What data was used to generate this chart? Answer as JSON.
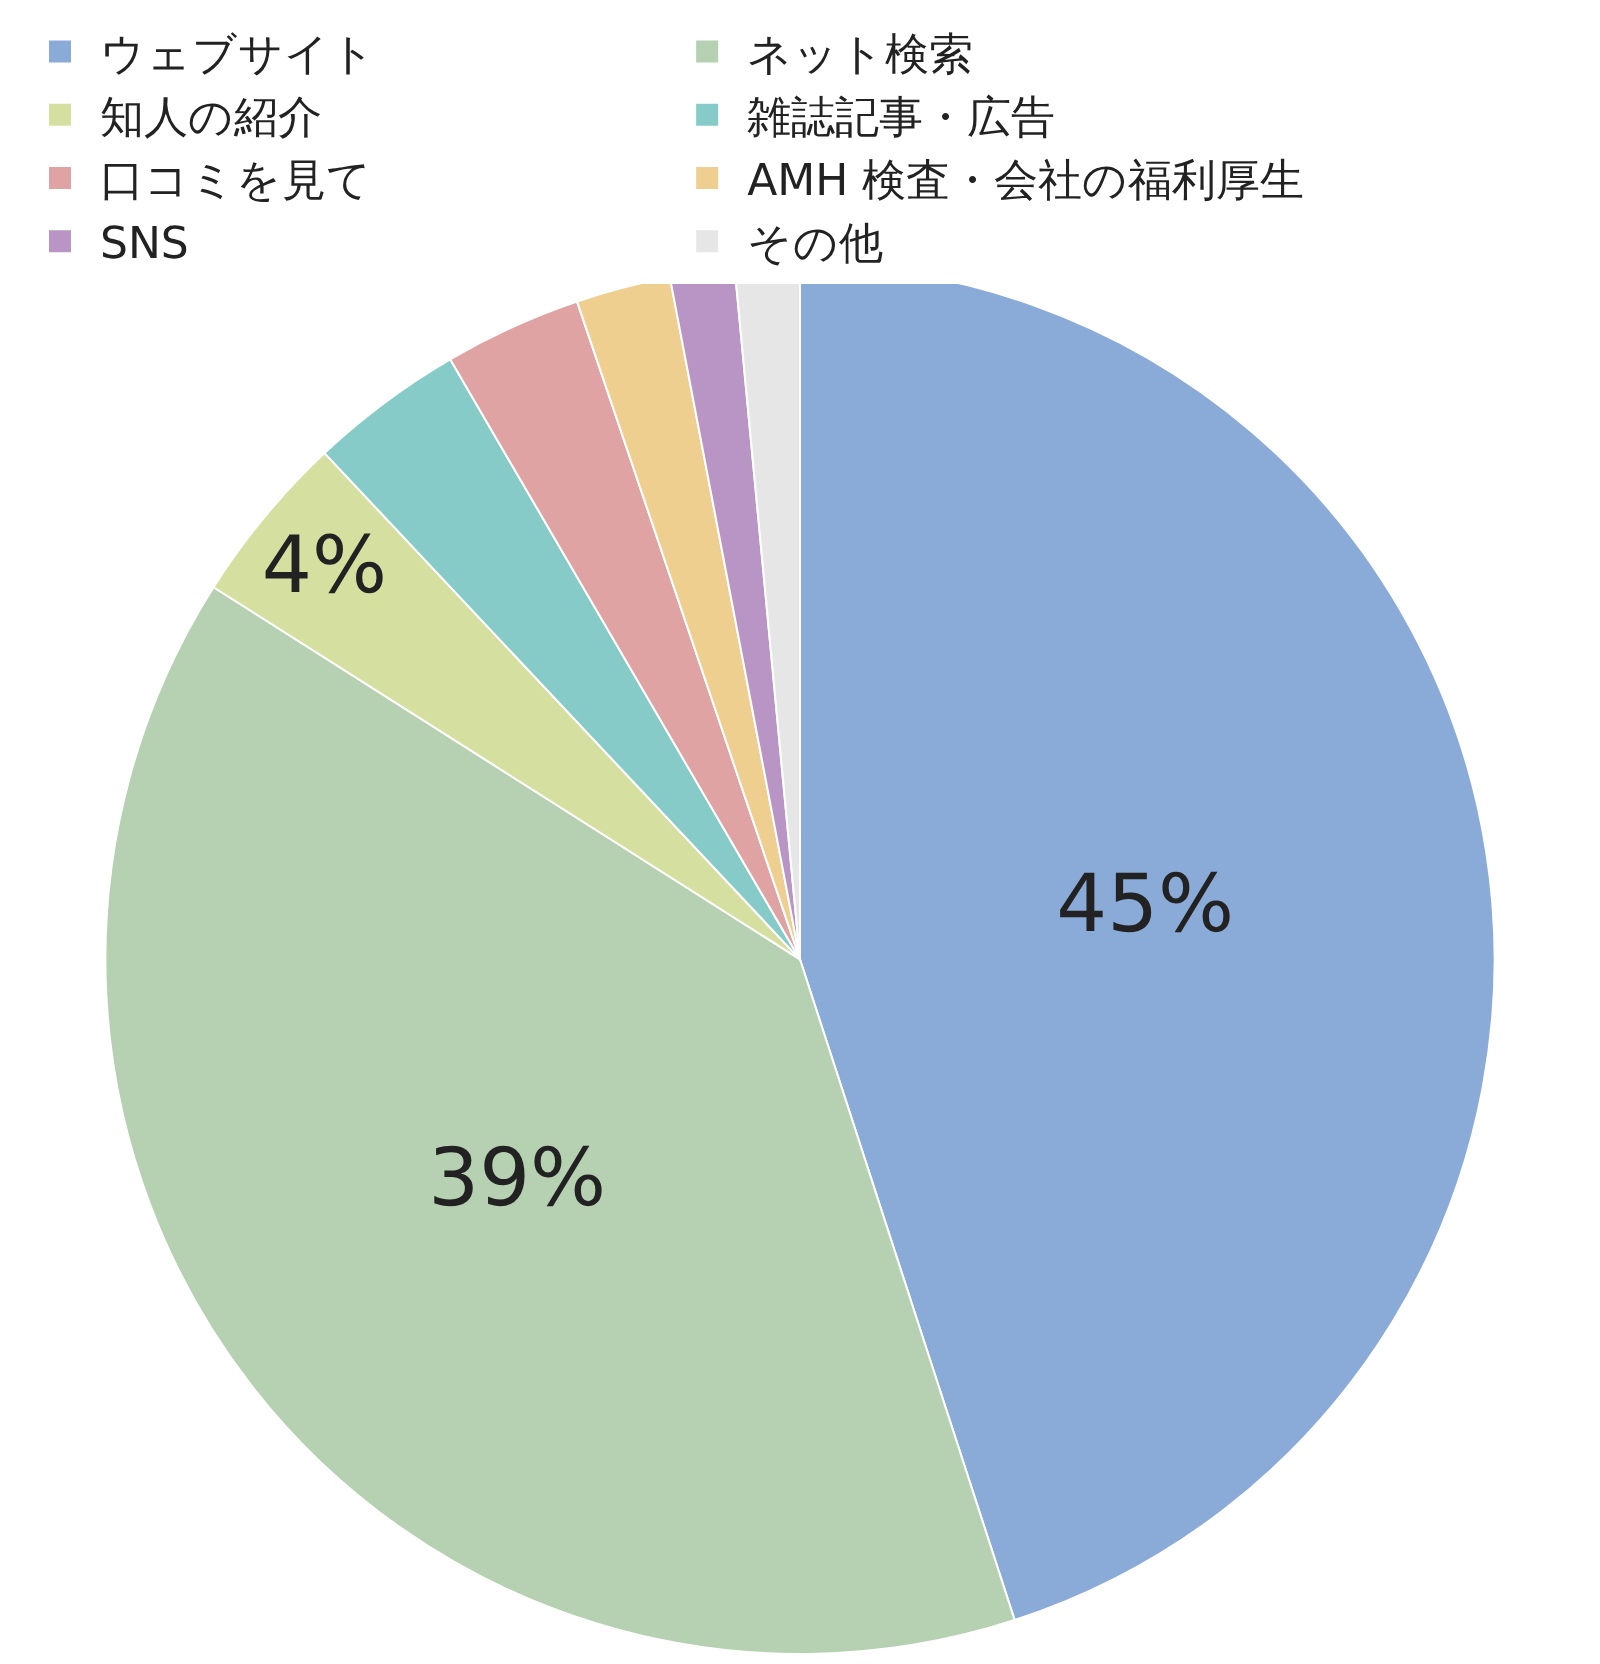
{
  "chart_data": {
    "type": "pie",
    "categories": [
      "ウェブサイト",
      "ネット検索",
      "知人の紹介",
      "雑誌記事・広告",
      "口コミを見て",
      "AMH 検査・会社の福利厚生",
      "SNS",
      "その他"
    ],
    "values": [
      45,
      39,
      4,
      3.6,
      3.2,
      2.2,
      1.5,
      1.5
    ],
    "colors": [
      "#8aaad8",
      "#b5d1b1",
      "#d5e0a0",
      "#87cbc8",
      "#e0a3a3",
      "#eecf8f",
      "#b895c4",
      "#e6e6e6"
    ],
    "value_labels": [
      "45%",
      "39%",
      "4%",
      null,
      null,
      null,
      null,
      null
    ],
    "legend": "top"
  }
}
